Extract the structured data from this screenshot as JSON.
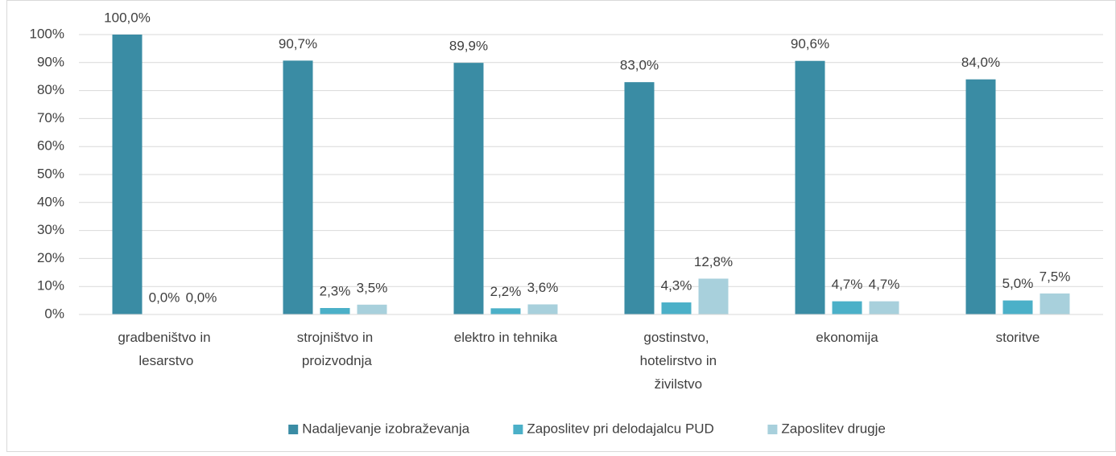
{
  "chart_data": {
    "type": "bar",
    "categories": [
      "gradbeništvo in lesarstvo",
      "strojništvo in proizvodnja",
      "elektro in tehnika",
      "gostinstvo, hotelirstvo in živilstvo",
      "ekonomija",
      "storitve"
    ],
    "series": [
      {
        "name": "Nadaljevanje izobraževanja",
        "color": "#3a8ca4",
        "values": [
          100.0,
          90.7,
          89.9,
          83.0,
          90.6,
          84.0
        ],
        "value_labels": [
          "100,0%",
          "90,7%",
          "89,9%",
          "83,0%",
          "90,6%",
          "84,0%"
        ]
      },
      {
        "name": "Zaposlitev pri delodajalcu PUD",
        "color": "#4bb0c8",
        "values": [
          0.0,
          2.3,
          2.2,
          4.3,
          4.7,
          5.0
        ],
        "value_labels": [
          "0,0%",
          "2,3%",
          "2,2%",
          "4,3%",
          "4,7%",
          "5,0%"
        ]
      },
      {
        "name": "Zaposlitev drugje",
        "color": "#a8d0dc",
        "values": [
          0.0,
          3.5,
          3.6,
          12.8,
          4.7,
          7.5
        ],
        "value_labels": [
          "0,0%",
          "3,5%",
          "3,6%",
          "12,8%",
          "4,7%",
          "7,5%"
        ]
      }
    ],
    "ylim": [
      0,
      100
    ],
    "yticks": [
      {
        "value": 0,
        "label": "0%"
      },
      {
        "value": 10,
        "label": "10%"
      },
      {
        "value": 20,
        "label": "20%"
      },
      {
        "value": 30,
        "label": "30%"
      },
      {
        "value": 40,
        "label": "40%"
      },
      {
        "value": 50,
        "label": "50%"
      },
      {
        "value": 60,
        "label": "60%"
      },
      {
        "value": 70,
        "label": "70%"
      },
      {
        "value": 80,
        "label": "80%"
      },
      {
        "value": 90,
        "label": "90%"
      },
      {
        "value": 100,
        "label": "100%"
      }
    ],
    "grid": true,
    "legend": "bottom"
  }
}
